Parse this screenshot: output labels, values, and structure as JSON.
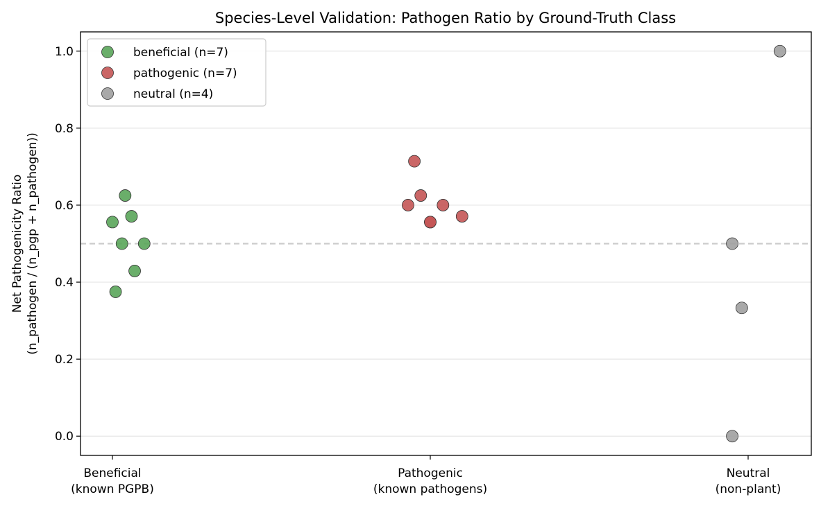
{
  "chart_data": {
    "type": "scatter",
    "title": "Species-Level Validation: Pathogen Ratio by Ground-Truth Class",
    "ylabel_lines": [
      "Net Pathogenicity Ratio",
      "(n_pathogen / (n_pgp + n_pathogen))"
    ],
    "xlabel": "",
    "categories": [
      {
        "lines": [
          "Beneficial",
          "(known PGPB)"
        ]
      },
      {
        "lines": [
          "Pathogenic",
          "(known pathogens)"
        ]
      },
      {
        "lines": [
          "Neutral",
          "(non-plant)"
        ]
      }
    ],
    "ylim": [
      -0.05,
      1.05
    ],
    "yticks": [
      "0.0",
      "0.2",
      "0.4",
      "0.6",
      "0.8",
      "1.0"
    ],
    "ytick_values": [
      0.0,
      0.2,
      0.4,
      0.6,
      0.8,
      1.0
    ],
    "grid": "horizontal",
    "reference_line": {
      "y": 0.5,
      "style": "dashed",
      "color": "#cccccc"
    },
    "legend_position": "upper-left",
    "series": [
      {
        "name": "beneficial (n=7)",
        "color": "#5aa55a",
        "points": [
          {
            "category": 0,
            "jitter": 0.0,
            "y": 0.556
          },
          {
            "category": 0,
            "jitter": 0.04,
            "y": 0.625
          },
          {
            "category": 0,
            "jitter": 0.06,
            "y": 0.571
          },
          {
            "category": 0,
            "jitter": 0.03,
            "y": 0.5
          },
          {
            "category": 0,
            "jitter": 0.1,
            "y": 0.5
          },
          {
            "category": 0,
            "jitter": 0.07,
            "y": 0.429
          },
          {
            "category": 0,
            "jitter": 0.01,
            "y": 0.375
          }
        ]
      },
      {
        "name": "pathogenic (n=7)",
        "color": "#c45555",
        "points": [
          {
            "category": 1,
            "jitter": -0.05,
            "y": 0.714
          },
          {
            "category": 1,
            "jitter": -0.03,
            "y": 0.625
          },
          {
            "category": 1,
            "jitter": -0.07,
            "y": 0.6
          },
          {
            "category": 1,
            "jitter": 0.04,
            "y": 0.6
          },
          {
            "category": 1,
            "jitter": 0.0,
            "y": 0.556
          },
          {
            "category": 1,
            "jitter": 0.0,
            "y": 0.556
          },
          {
            "category": 1,
            "jitter": 0.1,
            "y": 0.571
          }
        ]
      },
      {
        "name": "neutral (n=4)",
        "color": "#a0a0a0",
        "points": [
          {
            "category": 2,
            "jitter": 0.1,
            "y": 1.0
          },
          {
            "category": 2,
            "jitter": -0.05,
            "y": 0.5
          },
          {
            "category": 2,
            "jitter": -0.02,
            "y": 0.333
          },
          {
            "category": 2,
            "jitter": -0.05,
            "y": 0.0
          }
        ]
      }
    ]
  }
}
